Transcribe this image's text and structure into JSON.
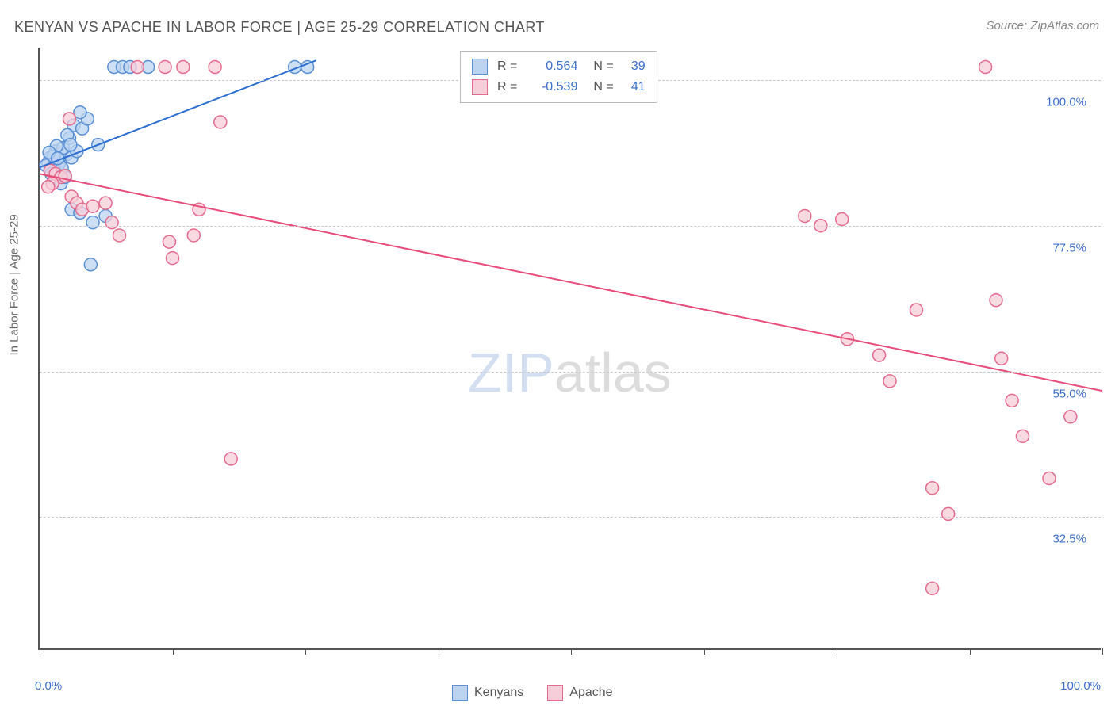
{
  "title": "KENYAN VS APACHE IN LABOR FORCE | AGE 25-29 CORRELATION CHART",
  "source": "Source: ZipAtlas.com",
  "y_axis_title": "In Labor Force | Age 25-29",
  "watermark": {
    "part1": "ZIP",
    "part2": "atlas"
  },
  "chart": {
    "type": "scatter",
    "background_color": "#ffffff",
    "grid_color": "#cccccc",
    "axis_color": "#555555",
    "xlim": [
      0,
      100
    ],
    "ylim": [
      12,
      105
    ],
    "x_ticks": [
      0,
      12.5,
      25,
      37.5,
      50,
      62.5,
      75,
      87.5,
      100
    ],
    "x_tick_labels": {
      "0": "0.0%",
      "100": "100.0%"
    },
    "y_gridlines": [
      32.5,
      55.0,
      77.5,
      100.0
    ],
    "y_tick_labels": [
      "32.5%",
      "55.0%",
      "77.5%",
      "100.0%"
    ],
    "marker_radius": 8,
    "marker_stroke_width": 1.5,
    "line_width": 2,
    "series": [
      {
        "name": "Kenyans",
        "fill": "#bcd4f0",
        "stroke": "#5a8fd6",
        "line_color": "#2c6fd1",
        "r": 0.564,
        "n": 39,
        "trend": {
          "x1": 0,
          "y1": 86.5,
          "x2": 26,
          "y2": 103
        },
        "points": [
          [
            1.0,
            88
          ],
          [
            1.5,
            89
          ],
          [
            2.0,
            87.5
          ],
          [
            2.5,
            88.5
          ],
          [
            1.2,
            86.5
          ],
          [
            1.8,
            87
          ],
          [
            2.2,
            89.5
          ],
          [
            0.8,
            87.2
          ],
          [
            1.4,
            86
          ],
          [
            3.0,
            88
          ],
          [
            3.5,
            89
          ],
          [
            2.8,
            91
          ],
          [
            3.2,
            93
          ],
          [
            4.0,
            92.5
          ],
          [
            4.5,
            94
          ],
          [
            3.8,
            95
          ],
          [
            2.0,
            84
          ],
          [
            2.4,
            85
          ],
          [
            3.0,
            80
          ],
          [
            3.8,
            79.5
          ],
          [
            2.6,
            91.5
          ],
          [
            1.6,
            89.8
          ],
          [
            0.6,
            86.8
          ],
          [
            1.1,
            85.5
          ],
          [
            5.0,
            78
          ],
          [
            6.2,
            79
          ],
          [
            4.8,
            71.5
          ],
          [
            7.0,
            102
          ],
          [
            7.8,
            102
          ],
          [
            8.5,
            102
          ],
          [
            10.2,
            102
          ],
          [
            24.0,
            102
          ],
          [
            25.2,
            102
          ],
          [
            5.5,
            90
          ],
          [
            1.3,
            88.2
          ],
          [
            0.9,
            88.8
          ],
          [
            2.1,
            86.4
          ],
          [
            1.7,
            87.9
          ],
          [
            2.9,
            90
          ]
        ]
      },
      {
        "name": "Apache",
        "fill": "#f7cdd9",
        "stroke": "#e46b8d",
        "line_color": "#e84c7a",
        "r": -0.539,
        "n": 41,
        "trend": {
          "x1": 0,
          "y1": 85.5,
          "x2": 100,
          "y2": 52
        },
        "points": [
          [
            1.0,
            86
          ],
          [
            1.5,
            85.5
          ],
          [
            2.0,
            85
          ],
          [
            1.2,
            84
          ],
          [
            2.4,
            85.2
          ],
          [
            0.8,
            83.5
          ],
          [
            3.0,
            82
          ],
          [
            3.5,
            81
          ],
          [
            4.0,
            80
          ],
          [
            5.0,
            80.5
          ],
          [
            2.8,
            94
          ],
          [
            6.2,
            81
          ],
          [
            6.8,
            78
          ],
          [
            7.5,
            76
          ],
          [
            9.2,
            102
          ],
          [
            11.8,
            102
          ],
          [
            12.2,
            75
          ],
          [
            13.5,
            102
          ],
          [
            15.0,
            80
          ],
          [
            16.5,
            102
          ],
          [
            17.0,
            93.5
          ],
          [
            18.0,
            41.5
          ],
          [
            14.5,
            76
          ],
          [
            12.5,
            72.5
          ],
          [
            72.0,
            79
          ],
          [
            73.5,
            77.5
          ],
          [
            75.5,
            78.5
          ],
          [
            76.0,
            60
          ],
          [
            79.0,
            57.5
          ],
          [
            80.0,
            53.5
          ],
          [
            82.5,
            64.5
          ],
          [
            84.0,
            21.5
          ],
          [
            84.0,
            37
          ],
          [
            85.5,
            33
          ],
          [
            89.0,
            102
          ],
          [
            90.0,
            66
          ],
          [
            90.5,
            57
          ],
          [
            91.5,
            50.5
          ],
          [
            92.5,
            45
          ],
          [
            95.0,
            38.5
          ],
          [
            97.0,
            48
          ]
        ]
      }
    ]
  },
  "legend_bottom": [
    {
      "label": "Kenyans",
      "fill": "#bcd4f0",
      "stroke": "#5a8fd6"
    },
    {
      "label": "Apache",
      "fill": "#f7cdd9",
      "stroke": "#e46b8d"
    }
  ]
}
